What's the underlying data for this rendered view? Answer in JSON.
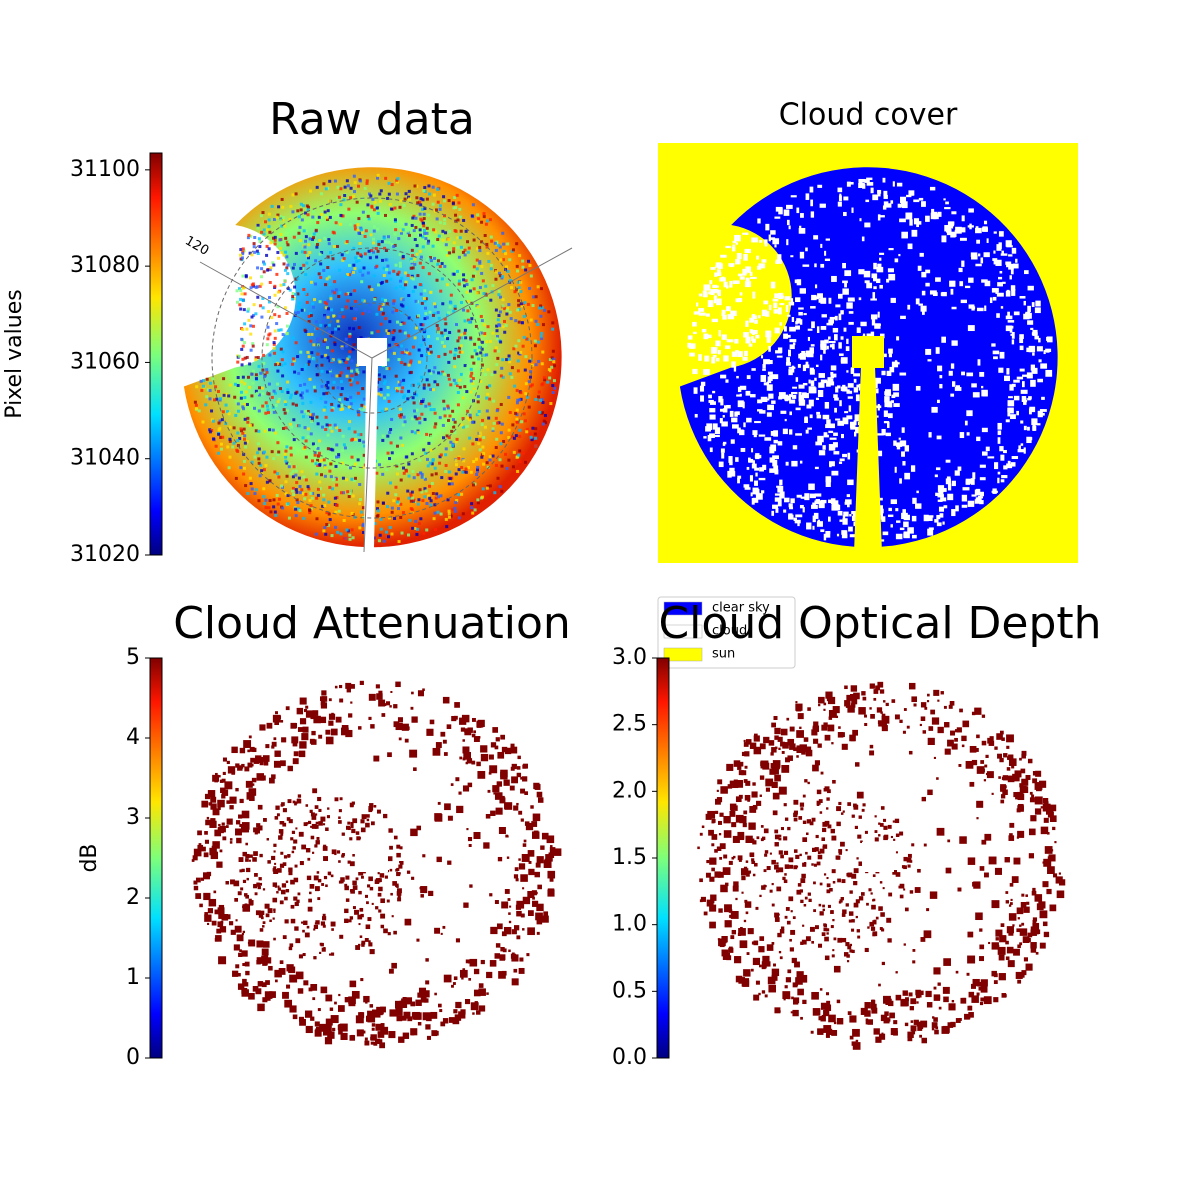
{
  "chart_data": [
    {
      "type": "image",
      "title": "Raw data",
      "colorbar_label": "Pixel values",
      "colormap": "jet",
      "ylim": [
        31020,
        31103.5
      ],
      "yticks": [
        31020,
        31040,
        31060,
        31080,
        31100
      ],
      "annotations": [
        "120"
      ]
    },
    {
      "type": "image",
      "title": "Cloud cover",
      "series": [
        {
          "name": "clear sky",
          "color": "#0000ff"
        },
        {
          "name": "cloud",
          "color": "#ffffff"
        },
        {
          "name": "sun",
          "color": "#ffff00"
        }
      ]
    },
    {
      "type": "image",
      "title": "Cloud Attenuation",
      "colorbar_label": "dB",
      "colormap": "jet",
      "ylim": [
        0,
        5
      ],
      "yticks": [
        0,
        1,
        2,
        3,
        4,
        5
      ]
    },
    {
      "type": "image",
      "title": "Cloud Optical Depth",
      "colormap": "jet",
      "ylim": [
        0,
        3
      ],
      "yticks": [
        {
          "value": 0,
          "label": "0.0"
        },
        0.5,
        {
          "value": 1,
          "label": "1.0"
        },
        1.5,
        {
          "value": 2,
          "label": "2.0"
        },
        2.5,
        {
          "value": 3,
          "label": "3.0"
        }
      ]
    }
  ]
}
